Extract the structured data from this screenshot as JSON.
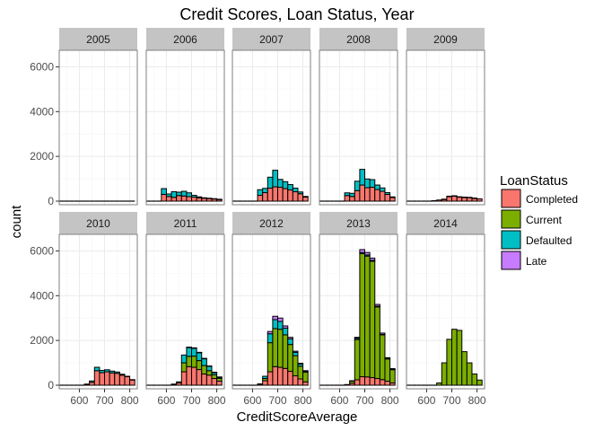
{
  "chart_data": {
    "type": "bar",
    "stacked": true,
    "facet": "Year",
    "title": "Credit Scores, Loan Status, Year",
    "xlabel": "CreditScoreAverage",
    "ylabel": "count",
    "xlim": [
      520,
      830
    ],
    "ylim": [
      0,
      6500
    ],
    "x_ticks": [
      600,
      700,
      800
    ],
    "y_ticks": [
      0,
      2000,
      4000,
      6000
    ],
    "grid": true,
    "legend": {
      "title": "LoanStatus",
      "position": "right"
    },
    "series": [
      {
        "name": "Completed",
        "color": "#F8766D"
      },
      {
        "name": "Current",
        "color": "#7CAE00"
      },
      {
        "name": "Defaulted",
        "color": "#00BFC4"
      },
      {
        "name": "Late",
        "color": "#C77CFF"
      }
    ],
    "bins": [
      530,
      550,
      570,
      590,
      610,
      630,
      650,
      670,
      690,
      710,
      730,
      750,
      770,
      790,
      810
    ],
    "bin_width": 20,
    "panels": [
      {
        "label": "2005",
        "Completed": [
          0,
          0,
          0,
          0,
          0,
          0,
          0,
          0,
          0,
          0,
          0,
          0,
          0,
          0,
          0
        ],
        "Current": [
          0,
          0,
          0,
          0,
          0,
          0,
          0,
          0,
          0,
          0,
          0,
          0,
          0,
          0,
          0
        ],
        "Defaulted": [
          0,
          0,
          0,
          0,
          0,
          0,
          0,
          0,
          0,
          0,
          0,
          0,
          0,
          0,
          0
        ],
        "Late": [
          0,
          0,
          0,
          0,
          0,
          0,
          0,
          0,
          0,
          0,
          0,
          0,
          0,
          0,
          0
        ]
      },
      {
        "label": "2006",
        "Completed": [
          0,
          0,
          0,
          300,
          210,
          170,
          250,
          230,
          200,
          180,
          150,
          130,
          120,
          100,
          80
        ],
        "Current": [
          0,
          0,
          0,
          0,
          0,
          0,
          0,
          0,
          0,
          0,
          0,
          0,
          0,
          0,
          0
        ],
        "Defaulted": [
          0,
          0,
          0,
          260,
          110,
          250,
          150,
          210,
          170,
          80,
          40,
          20,
          10,
          10,
          5
        ],
        "Late": [
          0,
          0,
          0,
          0,
          0,
          0,
          0,
          0,
          0,
          0,
          0,
          0,
          0,
          0,
          0
        ]
      },
      {
        "label": "2007",
        "Completed": [
          0,
          0,
          0,
          0,
          0,
          260,
          380,
          580,
          640,
          620,
          560,
          500,
          420,
          330,
          180
        ],
        "Current": [
          0,
          0,
          0,
          0,
          0,
          0,
          0,
          0,
          0,
          0,
          0,
          0,
          0,
          0,
          0
        ],
        "Defaulted": [
          0,
          0,
          0,
          0,
          0,
          250,
          190,
          490,
          740,
          350,
          310,
          240,
          160,
          80,
          30
        ],
        "Late": [
          0,
          0,
          0,
          0,
          0,
          0,
          0,
          0,
          0,
          0,
          0,
          0,
          0,
          0,
          0
        ]
      },
      {
        "label": "2008",
        "Completed": [
          0,
          0,
          0,
          0,
          0,
          250,
          210,
          470,
          720,
          600,
          620,
          520,
          440,
          300,
          160
        ],
        "Current": [
          0,
          0,
          0,
          0,
          0,
          0,
          0,
          0,
          0,
          0,
          0,
          0,
          0,
          0,
          0
        ],
        "Defaulted": [
          0,
          0,
          0,
          0,
          0,
          120,
          140,
          420,
          700,
          390,
          340,
          200,
          150,
          80,
          30
        ],
        "Late": [
          0,
          0,
          0,
          0,
          0,
          0,
          0,
          0,
          0,
          0,
          0,
          0,
          0,
          0,
          0
        ]
      },
      {
        "label": "2009",
        "Completed": [
          0,
          0,
          0,
          0,
          0,
          20,
          50,
          80,
          200,
          220,
          180,
          170,
          160,
          130,
          100
        ],
        "Current": [
          0,
          0,
          0,
          0,
          0,
          0,
          0,
          0,
          0,
          0,
          0,
          0,
          0,
          0,
          0
        ],
        "Defaulted": [
          0,
          0,
          0,
          0,
          0,
          0,
          0,
          10,
          20,
          20,
          15,
          10,
          10,
          5,
          0
        ],
        "Late": [
          0,
          0,
          0,
          0,
          0,
          0,
          0,
          0,
          0,
          0,
          0,
          0,
          0,
          0,
          0
        ]
      },
      {
        "label": "2010",
        "Completed": [
          0,
          0,
          0,
          0,
          0,
          40,
          130,
          650,
          560,
          600,
          550,
          530,
          450,
          380,
          240
        ],
        "Current": [
          0,
          0,
          0,
          0,
          0,
          0,
          0,
          0,
          0,
          0,
          0,
          0,
          0,
          0,
          0
        ],
        "Defaulted": [
          0,
          0,
          0,
          0,
          0,
          10,
          60,
          150,
          100,
          90,
          80,
          60,
          40,
          20,
          10
        ],
        "Late": [
          0,
          0,
          0,
          0,
          0,
          0,
          0,
          0,
          0,
          0,
          0,
          0,
          0,
          0,
          0
        ]
      },
      {
        "label": "2011",
        "Completed": [
          0,
          0,
          0,
          0,
          0,
          40,
          100,
          600,
          830,
          800,
          700,
          500,
          450,
          300,
          180
        ],
        "Current": [
          0,
          0,
          0,
          0,
          0,
          0,
          0,
          400,
          460,
          500,
          400,
          380,
          200,
          170,
          130
        ],
        "Defaulted": [
          0,
          0,
          0,
          0,
          0,
          10,
          50,
          350,
          390,
          350,
          350,
          300,
          200,
          100,
          50
        ],
        "Late": [
          0,
          0,
          0,
          0,
          0,
          0,
          0,
          0,
          20,
          20,
          20,
          20,
          10,
          10,
          10
        ]
      },
      {
        "label": "2012",
        "Completed": [
          0,
          0,
          0,
          0,
          0,
          50,
          200,
          600,
          830,
          800,
          750,
          620,
          420,
          280,
          150
        ],
        "Current": [
          0,
          0,
          0,
          0,
          0,
          0,
          100,
          1300,
          1700,
          1700,
          1500,
          1200,
          900,
          570,
          430
        ],
        "Defaulted": [
          0,
          0,
          0,
          0,
          0,
          10,
          100,
          400,
          400,
          350,
          300,
          250,
          150,
          100,
          50
        ],
        "Late": [
          0,
          0,
          0,
          0,
          0,
          0,
          0,
          100,
          150,
          150,
          100,
          70,
          50,
          30,
          20
        ]
      },
      {
        "label": "2013",
        "Completed": [
          0,
          0,
          0,
          0,
          0,
          30,
          90,
          240,
          380,
          370,
          340,
          300,
          250,
          180,
          100
        ],
        "Current": [
          0,
          0,
          0,
          0,
          0,
          0,
          100,
          1800,
          5500,
          5400,
          5200,
          3200,
          2000,
          1000,
          600
        ],
        "Defaulted": [
          0,
          0,
          0,
          0,
          0,
          0,
          10,
          60,
          50,
          50,
          40,
          30,
          20,
          10,
          10
        ],
        "Late": [
          0,
          0,
          0,
          0,
          0,
          0,
          0,
          40,
          130,
          110,
          100,
          80,
          60,
          40,
          30
        ]
      },
      {
        "label": "2014",
        "Completed": [
          0,
          0,
          0,
          0,
          0,
          0,
          0,
          0,
          0,
          0,
          0,
          0,
          0,
          0,
          0
        ],
        "Current": [
          0,
          0,
          0,
          0,
          0,
          0,
          100,
          1000,
          2050,
          2500,
          2450,
          1500,
          1000,
          500,
          230
        ],
        "Defaulted": [
          0,
          0,
          0,
          0,
          0,
          0,
          0,
          0,
          0,
          0,
          0,
          0,
          0,
          0,
          0
        ],
        "Late": [
          0,
          0,
          0,
          0,
          0,
          0,
          0,
          0,
          0,
          0,
          0,
          0,
          0,
          0,
          0
        ]
      }
    ]
  },
  "colors": {
    "panel_background": "#ffffff",
    "grid_major": "#ebebeb",
    "grid_minor": "#f5f5f5",
    "strip_background": "#c4c4c4",
    "bar_outline": "#000000",
    "panel_border": "#7f7f7f"
  }
}
